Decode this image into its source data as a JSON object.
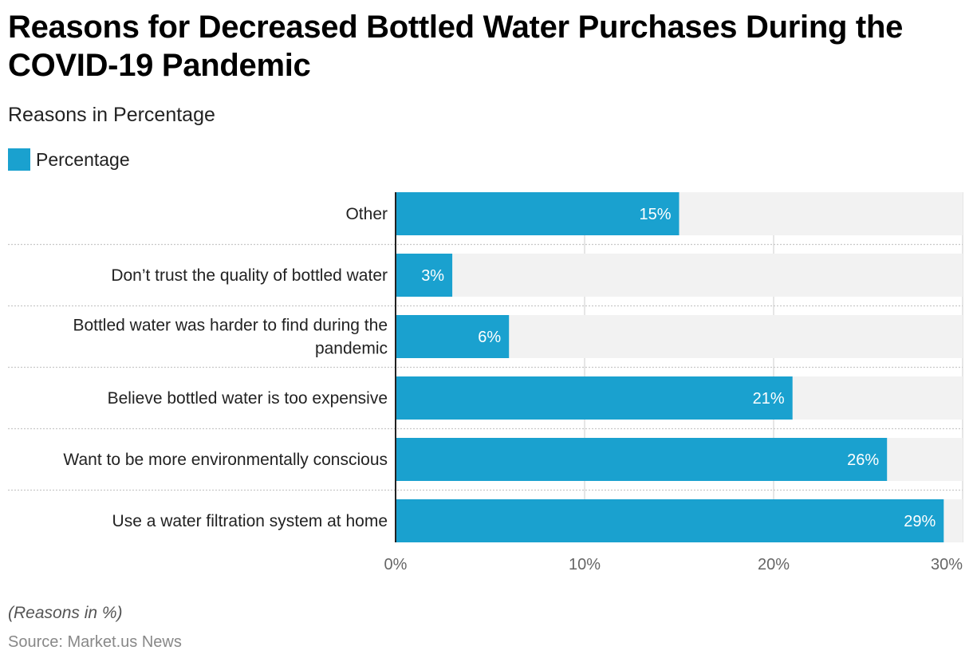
{
  "header": {
    "title": "Reasons for Decreased Bottled Water Purchases During the COVID-19 Pandemic",
    "subtitle": "Reasons in Percentage"
  },
  "legend": {
    "label": "Percentage",
    "color": "#1aa1cf"
  },
  "footer": {
    "note": "(Reasons in %)",
    "source": "Source: Market.us News"
  },
  "colors": {
    "bar": "#1aa1cf",
    "track": "#f2f2f2",
    "grid": "#cccccc",
    "axis": "#222222",
    "value_label": "#ffffff"
  },
  "chart_data": {
    "type": "bar",
    "orientation": "horizontal",
    "title": "Reasons for Decreased Bottled Water Purchases During the COVID-19 Pandemic",
    "subtitle": "Reasons in Percentage",
    "xlabel": "",
    "ylabel": "",
    "categories": [
      [
        "Other"
      ],
      [
        "Don’t trust the quality of bottled water"
      ],
      [
        "Bottled water was harder to find during the",
        "pandemic"
      ],
      [
        "Believe bottled water is too expensive"
      ],
      [
        "Want to be more environmentally conscious"
      ],
      [
        "Use a water filtration system at home"
      ]
    ],
    "series": [
      {
        "name": "Percentage",
        "values": [
          15,
          3,
          6,
          21,
          26,
          29
        ],
        "labels": [
          "15%",
          "3%",
          "6%",
          "21%",
          "26%",
          "29%"
        ]
      }
    ],
    "xlim": [
      0,
      30
    ],
    "ticks": [
      0,
      10,
      20,
      30
    ],
    "tick_labels": [
      "0%",
      "10%",
      "20%",
      "30%"
    ],
    "grid": true,
    "legend_position": "top-left"
  }
}
